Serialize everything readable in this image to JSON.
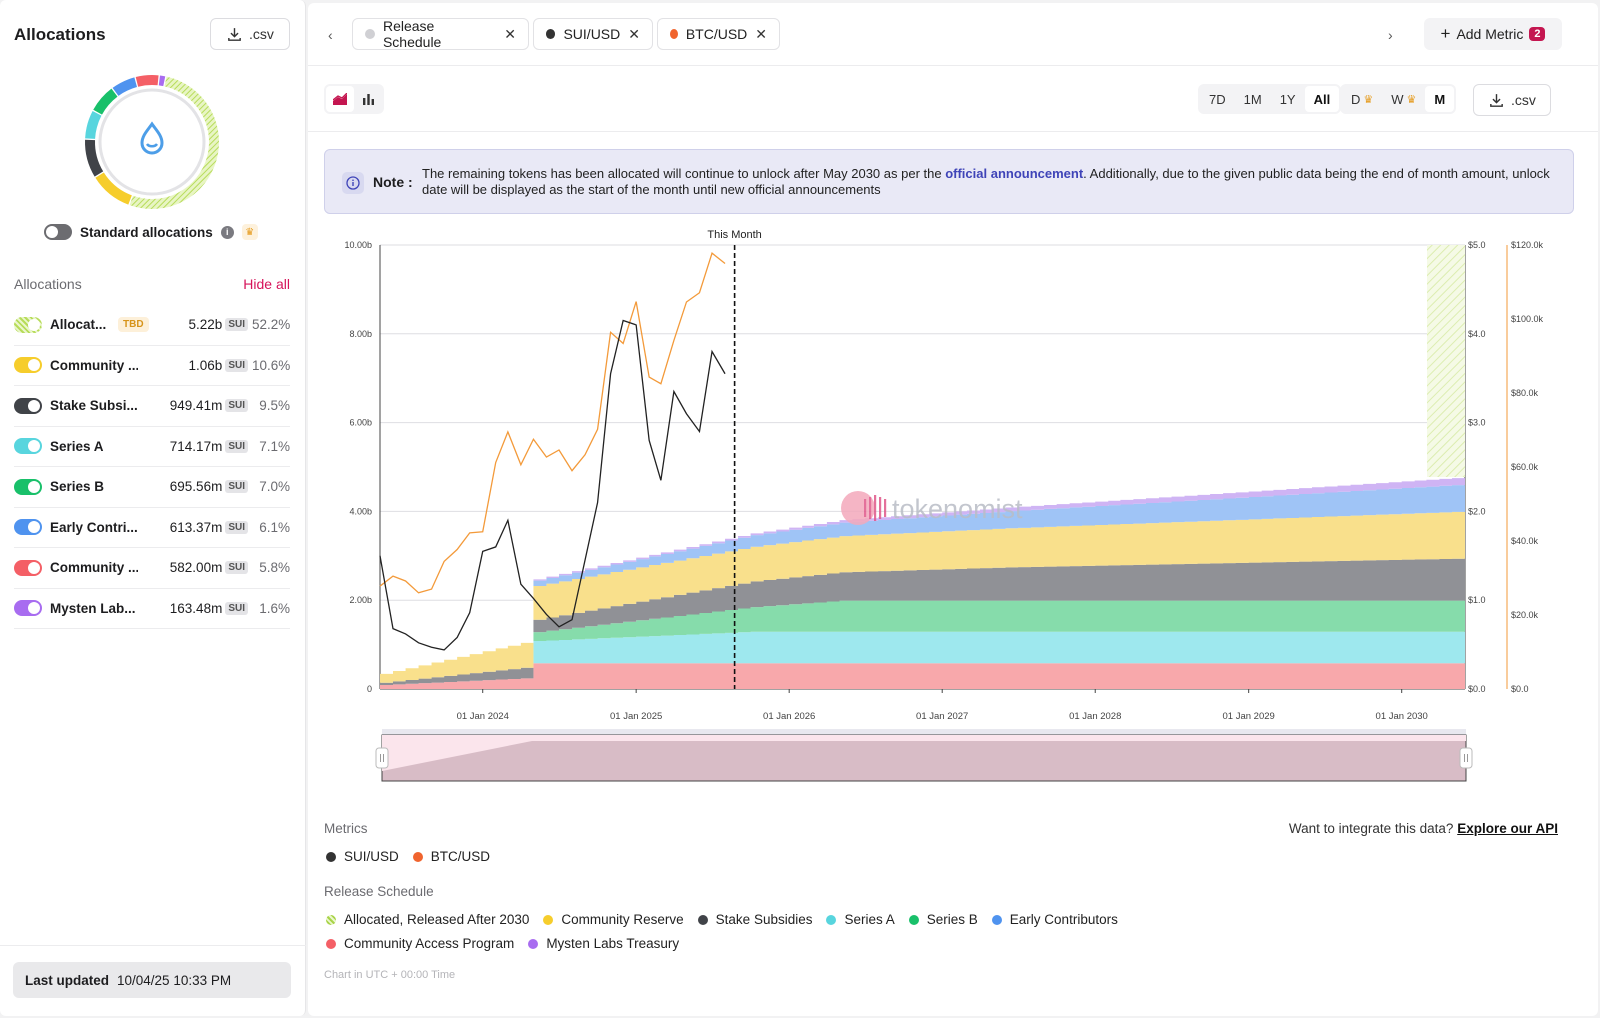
{
  "left": {
    "title": "Allocations",
    "csv_label": ".csv",
    "standard_allocations_label": "Standard allocations",
    "section_label": "Allocations",
    "hide_all_label": "Hide all",
    "items": [
      {
        "name": "Allocat...",
        "tag": "TBD",
        "amount": "5.22b",
        "unit": "SUI",
        "pct": "52.2%",
        "color": "#c8e67a"
      },
      {
        "name": "Community ...",
        "amount": "1.06b",
        "unit": "SUI",
        "pct": "10.6%",
        "color": "#f6cd2c"
      },
      {
        "name": "Stake Subsi...",
        "amount": "949.41m",
        "unit": "SUI",
        "pct": "9.5%",
        "color": "#404348"
      },
      {
        "name": "Series A",
        "amount": "714.17m",
        "unit": "SUI",
        "pct": "7.1%",
        "color": "#58d5de"
      },
      {
        "name": "Series B",
        "amount": "695.56m",
        "unit": "SUI",
        "pct": "7.0%",
        "color": "#19c06a"
      },
      {
        "name": "Early Contri...",
        "amount": "613.37m",
        "unit": "SUI",
        "pct": "6.1%",
        "color": "#4f93ef"
      },
      {
        "name": "Community ...",
        "amount": "582.00m",
        "unit": "SUI",
        "pct": "5.8%",
        "color": "#f45f66"
      },
      {
        "name": "Mysten Lab...",
        "amount": "163.48m",
        "unit": "SUI",
        "pct": "1.6%",
        "color": "#a86cf0"
      }
    ],
    "last_updated_label": "Last updated",
    "last_updated_value": "10/04/25 10:33 PM"
  },
  "tabs": [
    {
      "label": "Release Schedule",
      "color": "#d0d0d4"
    },
    {
      "label": "SUI/USD",
      "color": "#333333"
    },
    {
      "label": "BTC/USD",
      "color": "#f0642e"
    }
  ],
  "add_metric": {
    "label": "Add Metric",
    "count": "2"
  },
  "ranges": [
    "7D",
    "1M",
    "1Y",
    "All"
  ],
  "active_range": "All",
  "intervals": [
    "D",
    "W",
    "M"
  ],
  "active_interval": "M",
  "csv_label": ".csv",
  "note": {
    "label": "Note :",
    "text_before": "The remaining tokens has been allocated will continue to unlock after May 2030 as per the ",
    "link": "official announcement",
    "text_after": ". Additionally, due to the given public data being the end of month amount, unlock date will be displayed as the start of the month until new official announcements"
  },
  "chart_data": {
    "type": "area",
    "this_month_label": "This Month",
    "watermark": "tokenomist",
    "x_ticks": [
      "01 Jan 2024",
      "01 Jan 2025",
      "01 Jan 2026",
      "01 Jan 2027",
      "01 Jan 2028",
      "01 Jan 2029",
      "01 Jan 2030"
    ],
    "y_left_ticks": [
      "0",
      "2.00b",
      "4.00b",
      "6.00b",
      "8.00b",
      "10.00b"
    ],
    "y_left_range": [
      0,
      10000000000
    ],
    "y_mid_ticks": [
      "$0.0",
      "$1.0",
      "$2.0",
      "$3.0",
      "$4.0",
      "$5.0"
    ],
    "y_mid_range": [
      0,
      5
    ],
    "y_right_ticks": [
      "$0.0",
      "$20.0k",
      "$40.0k",
      "$60.0k",
      "$80.0k",
      "$100.0k",
      "$120.0k"
    ],
    "y_right_range": [
      0,
      120000
    ],
    "x_range": [
      "2023-05-01",
      "2030-06-01"
    ],
    "this_month": "2025-10-01",
    "stack_series": [
      {
        "name": "Community Access Program",
        "color": "#f8a8ab",
        "points": [
          [
            "2023-05-01",
            0.09
          ],
          [
            "2024-04-01",
            0.24
          ],
          [
            "2024-05-01",
            0.58
          ],
          [
            "2030-06-01",
            0.58
          ]
        ]
      },
      {
        "name": "Series A",
        "color": "#9ee8ee",
        "points": [
          [
            "2023-05-01",
            0
          ],
          [
            "2024-04-01",
            0
          ],
          [
            "2024-05-01",
            0.5
          ],
          [
            "2025-10-01",
            0.71
          ],
          [
            "2030-06-01",
            0.71
          ]
        ]
      },
      {
        "name": "Series B",
        "color": "#86dcab",
        "points": [
          [
            "2023-05-01",
            0
          ],
          [
            "2024-04-01",
            0
          ],
          [
            "2024-05-01",
            0.2
          ],
          [
            "2026-05-01",
            0.7
          ],
          [
            "2030-06-01",
            0.7
          ]
        ]
      },
      {
        "name": "Stake Subsidies",
        "color": "#909196",
        "points": [
          [
            "2023-05-01",
            0.05
          ],
          [
            "2024-04-01",
            0.24
          ],
          [
            "2024-05-01",
            0.28
          ],
          [
            "2025-10-01",
            0.58
          ],
          [
            "2027-06-01",
            0.75
          ],
          [
            "2030-06-01",
            0.95
          ]
        ]
      },
      {
        "name": "Community Reserve",
        "color": "#f9e08c",
        "points": [
          [
            "2023-05-01",
            0.2
          ],
          [
            "2024-04-01",
            0.56
          ],
          [
            "2024-05-01",
            0.76
          ],
          [
            "2025-10-01",
            0.78
          ],
          [
            "2030-06-01",
            1.06
          ]
        ]
      },
      {
        "name": "Early Contributors",
        "color": "#9fc4f6",
        "points": [
          [
            "2023-05-01",
            0
          ],
          [
            "2024-04-01",
            0
          ],
          [
            "2024-05-01",
            0.12
          ],
          [
            "2025-10-01",
            0.26
          ],
          [
            "2030-06-01",
            0.61
          ]
        ]
      },
      {
        "name": "Mysten Labs Treasury",
        "color": "#cfb4f4",
        "points": [
          [
            "2023-05-01",
            0
          ],
          [
            "2024-04-01",
            0
          ],
          [
            "2024-05-01",
            0.03
          ],
          [
            "2025-10-01",
            0.04
          ],
          [
            "2030-06-01",
            0.16
          ]
        ]
      }
    ],
    "sui_usd": {
      "name": "SUI/USD",
      "color": "#222222",
      "points": [
        [
          "2023-05-01",
          1.5
        ],
        [
          "2023-06-01",
          0.68
        ],
        [
          "2023-07-01",
          0.62
        ],
        [
          "2023-08-01",
          0.52
        ],
        [
          "2023-09-01",
          0.47
        ],
        [
          "2023-10-01",
          0.44
        ],
        [
          "2023-11-01",
          0.58
        ],
        [
          "2023-12-01",
          0.86
        ],
        [
          "2024-01-01",
          1.55
        ],
        [
          "2024-02-01",
          1.6
        ],
        [
          "2024-03-01",
          1.9
        ],
        [
          "2024-04-01",
          1.18
        ],
        [
          "2024-05-01",
          1.02
        ],
        [
          "2024-06-01",
          0.84
        ],
        [
          "2024-07-01",
          0.7
        ],
        [
          "2024-08-01",
          0.78
        ],
        [
          "2024-09-01",
          1.45
        ],
        [
          "2024-10-01",
          2.1
        ],
        [
          "2024-11-01",
          3.55
        ],
        [
          "2024-12-01",
          4.15
        ],
        [
          "2025-01-01",
          4.1
        ],
        [
          "2025-02-01",
          2.8
        ],
        [
          "2025-03-01",
          2.35
        ],
        [
          "2025-04-01",
          3.35
        ],
        [
          "2025-05-01",
          3.1
        ],
        [
          "2025-06-01",
          2.9
        ],
        [
          "2025-07-01",
          3.8
        ],
        [
          "2025-08-01",
          3.55
        ]
      ]
    },
    "btc_usd": {
      "name": "BTC/USD",
      "color": "#f39a3a",
      "points": [
        [
          "2023-05-01",
          27800
        ],
        [
          "2023-06-01",
          30500
        ],
        [
          "2023-07-01",
          29200
        ],
        [
          "2023-08-01",
          26000
        ],
        [
          "2023-09-01",
          27000
        ],
        [
          "2023-10-01",
          34500
        ],
        [
          "2023-11-01",
          37700
        ],
        [
          "2023-12-01",
          42200
        ],
        [
          "2024-01-01",
          42500
        ],
        [
          "2024-02-01",
          61200
        ],
        [
          "2024-03-01",
          69500
        ],
        [
          "2024-04-01",
          60600
        ],
        [
          "2024-05-01",
          67500
        ],
        [
          "2024-06-01",
          62700
        ],
        [
          "2024-07-01",
          64600
        ],
        [
          "2024-08-01",
          59000
        ],
        [
          "2024-09-01",
          63300
        ],
        [
          "2024-10-01",
          70200
        ],
        [
          "2024-11-01",
          96400
        ],
        [
          "2024-12-01",
          93400
        ],
        [
          "2025-01-01",
          104700
        ],
        [
          "2025-02-01",
          84300
        ],
        [
          "2025-03-01",
          82500
        ],
        [
          "2025-04-01",
          94200
        ],
        [
          "2025-05-01",
          104600
        ],
        [
          "2025-06-01",
          107100
        ],
        [
          "2025-07-01",
          117800
        ],
        [
          "2025-08-01",
          115000
        ]
      ]
    }
  },
  "metrics": {
    "title": "Metrics",
    "api_text": "Want to integrate this data?",
    "api_link": "Explore our API",
    "items": [
      {
        "label": "SUI/USD",
        "color": "#333333"
      },
      {
        "label": "BTC/USD",
        "color": "#f0642e"
      }
    ]
  },
  "release_schedule": {
    "title": "Release Schedule",
    "row1": [
      {
        "label": "Allocated, Released After 2030",
        "color": "#c8e67a"
      },
      {
        "label": "Community Reserve",
        "color": "#f6cd2c"
      },
      {
        "label": "Stake Subsidies",
        "color": "#404348"
      },
      {
        "label": "Series A",
        "color": "#58d5de"
      },
      {
        "label": "Series B",
        "color": "#19c06a"
      },
      {
        "label": "Early Contributors",
        "color": "#4f93ef"
      }
    ],
    "row2": [
      {
        "label": "Community Access Program",
        "color": "#f45f66"
      },
      {
        "label": "Mysten Labs Treasury",
        "color": "#a86cf0"
      }
    ]
  },
  "utc_note": "Chart in UTC + 00:00 Time"
}
